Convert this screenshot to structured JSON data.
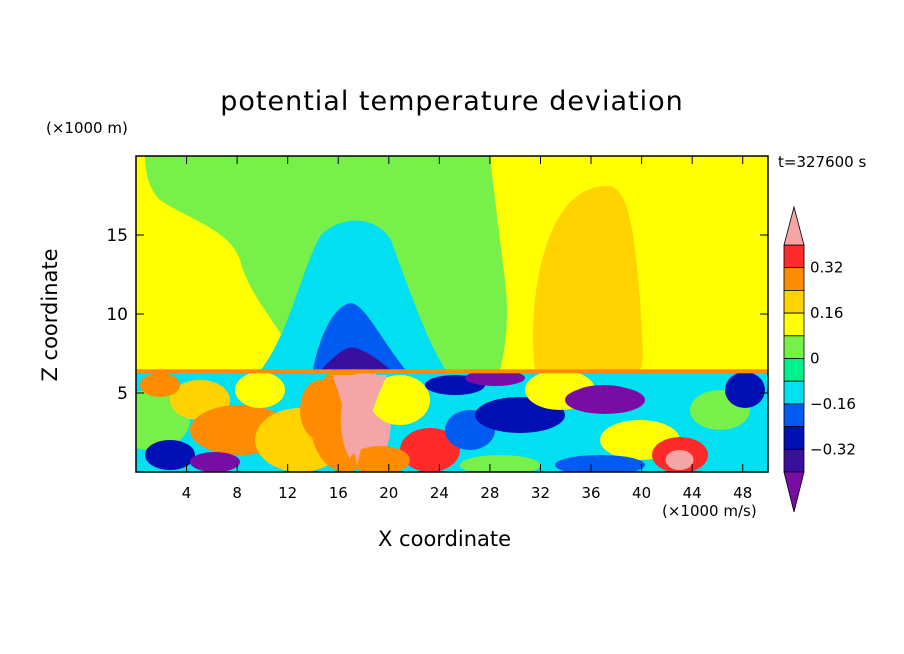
{
  "chart_data": {
    "type": "heatmap",
    "subtype": "filled-contour",
    "title": "potential temperature deviation",
    "xlabel": "X coordinate",
    "ylabel": "Z coordinate",
    "x_unit": "(×1000 m/s)",
    "y_unit": "(×1000 m)",
    "time_label": "t=327600 s",
    "xlim": [
      0,
      50
    ],
    "ylim": [
      0,
      20
    ],
    "x_ticks": [
      4,
      8,
      12,
      16,
      20,
      24,
      28,
      32,
      36,
      40,
      44,
      48
    ],
    "y_ticks": [
      5,
      10,
      15
    ],
    "colorbar": {
      "levels": [
        -0.48,
        -0.4,
        -0.32,
        -0.24,
        -0.16,
        -0.08,
        0,
        0.08,
        0.16,
        0.24,
        0.32,
        0.4
      ],
      "tick_labels": [
        "0.32",
        "0.16",
        "0",
        "−0.16",
        "−0.32"
      ],
      "tick_values": [
        0.32,
        0.16,
        0,
        -0.16,
        -0.32
      ],
      "colors": [
        "#7a0ca6",
        "#3b0f9e",
        "#0010b5",
        "#005cf0",
        "#00e0f0",
        "#00f08c",
        "#78f04a",
        "#ffff00",
        "#ffd200",
        "#ff8c00",
        "#ff2a2a",
        "#f5a5a5"
      ],
      "extend": "both"
    },
    "regions": {
      "background_upper": 0.04,
      "left_plume_upper": 0.12,
      "central_cold_column": {
        "x": 17,
        "core_value": -0.36,
        "outer_value": -0.12
      },
      "right_warm_column": {
        "x": 37,
        "value": 0.2
      },
      "boundary_layer_top": 6.5,
      "central_warm_lobe": {
        "x": 17.5,
        "value": 0.44
      },
      "cold_patch_right": {
        "x": 37,
        "z": 5.5,
        "value": -0.45
      },
      "warm_patch_bottom_right": {
        "x": 43,
        "z": 1,
        "value": 0.42
      }
    }
  }
}
